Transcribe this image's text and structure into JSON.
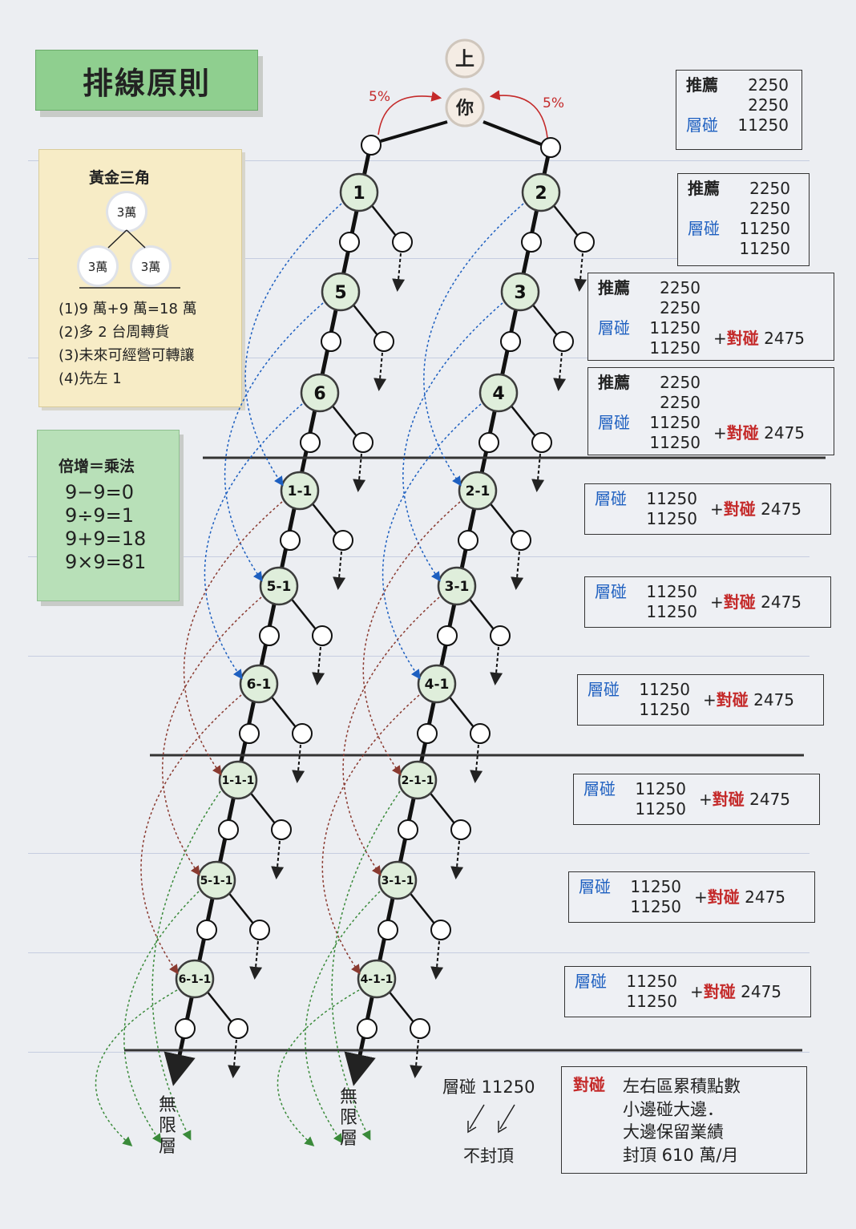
{
  "title": "排線原則",
  "golden_triangle": {
    "title": "黃金三角",
    "top_node": "3萬",
    "left_node": "3萬",
    "right_node": "3萬",
    "items": [
      "(1)9 萬+9 萬=18 萬",
      "(2)多 2 台周轉貨",
      "(3)未來可經營可轉讓",
      "(4)先左 1"
    ]
  },
  "multiply": {
    "title": "倍增＝乘法",
    "equations": [
      "9−9=0",
      "9÷9=1",
      "9+9=18",
      "9×9=81"
    ]
  },
  "tree": {
    "top_label": "上",
    "you_label": "你",
    "left_pct": "5%",
    "right_pct": "5%",
    "left_nodes": [
      "1",
      "5",
      "6",
      "1-1",
      "5-1",
      "6-1",
      "1-1-1",
      "5-1-1",
      "6-1-1"
    ],
    "right_nodes": [
      "2",
      "3",
      "4",
      "2-1",
      "3-1",
      "4-1",
      "2-1-1",
      "3-1-1",
      "4-1-1"
    ],
    "left_bottom": "無限層",
    "right_bottom": "無限層"
  },
  "labels": {
    "recommend": "推薦",
    "layer": "層碰",
    "pair": "對碰"
  },
  "boxes": [
    {
      "recommend": [
        "2250",
        "2250"
      ],
      "layer": [
        "11250"
      ],
      "pair": ""
    },
    {
      "recommend": [
        "2250",
        "2250"
      ],
      "layer": [
        "11250",
        "11250"
      ],
      "pair": ""
    },
    {
      "recommend": [
        "2250",
        "2250"
      ],
      "layer": [
        "11250",
        "11250"
      ],
      "pair": "2475"
    },
    {
      "recommend": [
        "2250",
        "2250"
      ],
      "layer": [
        "11250",
        "11250"
      ],
      "pair": "2475"
    },
    {
      "recommend": [],
      "layer": [
        "11250",
        "11250"
      ],
      "pair": "2475"
    },
    {
      "recommend": [],
      "layer": [
        "11250",
        "11250"
      ],
      "pair": "2475"
    },
    {
      "recommend": [],
      "layer": [
        "11250",
        "11250"
      ],
      "pair": "2475"
    },
    {
      "recommend": [],
      "layer": [
        "11250",
        "11250"
      ],
      "pair": "2475"
    },
    {
      "recommend": [],
      "layer": [
        "11250",
        "11250"
      ],
      "pair": "2475"
    },
    {
      "recommend": [],
      "layer": [
        "11250",
        "11250"
      ],
      "pair": "2475"
    }
  ],
  "bottom_note": {
    "layer_text": "層碰 11250",
    "no_cap": "不封頂"
  },
  "pair_note": {
    "label": "對碰",
    "lines": [
      "左右區累積點數",
      "小邊碰大邊．",
      "大邊保留業績",
      "封頂 610 萬/月"
    ]
  },
  "colors": {
    "title_green": "#8fcf8f",
    "blue": "#1d5fc0",
    "red": "#c42a2a",
    "arrow_green": "#3a8a3a",
    "arrow_brown": "#8a3a30"
  }
}
